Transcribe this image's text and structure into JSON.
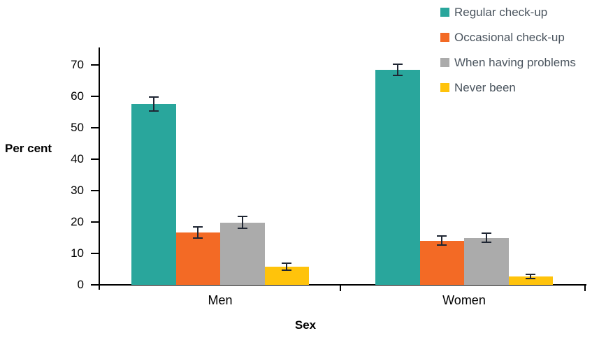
{
  "figure": {
    "background": "#ffffff",
    "axis_color": "#000000",
    "error_bar_color": "#1f2633",
    "legend_text_color": "#4a545e"
  },
  "chart_data": {
    "type": "bar",
    "title": "",
    "xlabel": "Sex",
    "ylabel": "Per cent",
    "categories": [
      "Men",
      "Women"
    ],
    "y_ticks": [
      0,
      10,
      20,
      30,
      40,
      50,
      60,
      70
    ],
    "ylim": [
      0,
      75.5
    ],
    "grid": false,
    "legend_position": "top-right",
    "error_bars": true,
    "series": [
      {
        "name": "Regular check-up",
        "color": "#29a69c",
        "values": [
          57.5,
          68.4
        ],
        "errors": [
          2.4,
          2.0
        ]
      },
      {
        "name": "Occasional check-up",
        "color": "#f36a25",
        "values": [
          16.6,
          14.1
        ],
        "errors": [
          2.0,
          1.6
        ]
      },
      {
        "name": "When having problems",
        "color": "#ababab",
        "values": [
          19.8,
          15.0
        ],
        "errors": [
          2.1,
          1.7
        ]
      },
      {
        "name": "Never been",
        "color": "#ffc30b",
        "values": [
          5.8,
          2.6
        ],
        "errors": [
          1.4,
          0.9
        ]
      }
    ]
  }
}
